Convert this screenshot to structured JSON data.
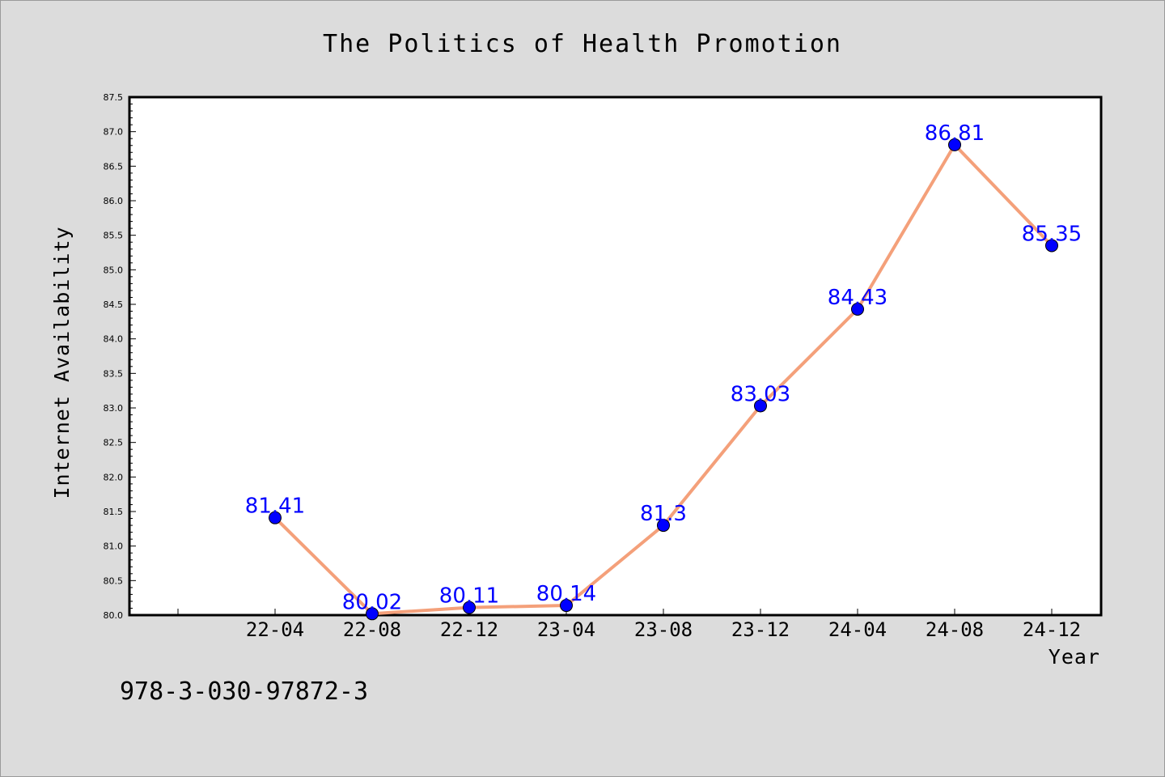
{
  "chart_data": {
    "type": "line",
    "title": "The Politics of Health Promotion",
    "xlabel": "Year",
    "ylabel": "Internet Availability",
    "categories": [
      "22-04",
      "22-08",
      "22-12",
      "23-04",
      "23-08",
      "23-12",
      "24-04",
      "24-08",
      "24-12"
    ],
    "values": [
      81.41,
      80.02,
      80.11,
      80.14,
      81.3,
      83.03,
      84.43,
      86.81,
      85.35
    ],
    "data_labels": [
      "81.41",
      "80.02",
      "80.11",
      "80.14",
      "81.3",
      "83.03",
      "84.43",
      "86.81",
      "85.35"
    ],
    "ylim": [
      80.0,
      87.5
    ],
    "yticks": [
      "80.0",
      "80.5",
      "81.0",
      "81.5",
      "82.0",
      "82.5",
      "83.0",
      "83.5",
      "84.0",
      "84.5",
      "85.0",
      "85.5",
      "86.0",
      "86.5",
      "87.0",
      "87.5"
    ],
    "grid": false,
    "line_color": "#f4a07a",
    "marker_color": "#0000ff",
    "label_color": "#0000ff"
  },
  "footer": {
    "isbn": "978-3-030-97872-3"
  }
}
